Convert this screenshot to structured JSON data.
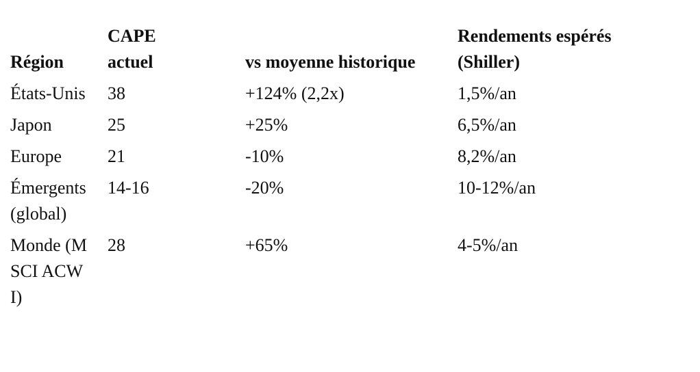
{
  "table": {
    "header": [
      "Région",
      "CAPE actuel",
      "vs moyenne historique",
      "Rendements espérés (Shiller)"
    ],
    "rows": [
      [
        "États-Unis",
        "38",
        "+124% (2,2x)",
        "1,5%/an"
      ],
      [
        "Japon",
        "25",
        "+25%",
        "6,5%/an"
      ],
      [
        "Europe",
        "21",
        "-10%",
        "8,2%/an"
      ],
      [
        "Émergents (global)",
        "14-16",
        "-20%",
        "10-12%/an"
      ],
      [
        "Monde (MSCI ACWI)",
        "28",
        "+65%",
        "4-5%/an"
      ]
    ]
  }
}
